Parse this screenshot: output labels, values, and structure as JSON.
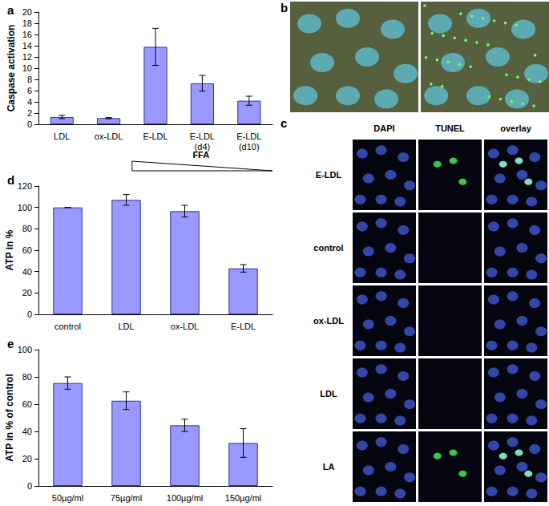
{
  "chart_data": [
    {
      "type": "bar",
      "title": "a",
      "categories": [
        "LDL",
        "ox-LDL",
        "E-LDL",
        "E-LDL\n(d4)",
        "E-LDL\n(d10)"
      ],
      "values": [
        1.3,
        1.1,
        13.8,
        7.3,
        4.2
      ],
      "errors": [
        0.3,
        0.1,
        3.3,
        1.4,
        0.8
      ],
      "color": "#9999ff",
      "ylabel": "Caspase activation",
      "ylim": [
        0,
        20
      ],
      "yticks": [
        0,
        2,
        4,
        6,
        8,
        10,
        12,
        14,
        16,
        18,
        20
      ],
      "grid": false,
      "annotations": [
        "FFA"
      ]
    },
    {
      "type": "bar",
      "title": "d",
      "categories": [
        "control",
        "LDL",
        "ox-LDL",
        "E-LDL"
      ],
      "values": [
        100,
        107,
        96.5,
        43
      ],
      "errors": [
        0,
        5,
        5.5,
        3.5
      ],
      "color": "#9999ff",
      "ylabel": "ATP in %",
      "ylim": [
        0,
        120
      ],
      "yticks": [
        0,
        20,
        40,
        60,
        80,
        100,
        120
      ],
      "grid": false
    },
    {
      "type": "bar",
      "title": "e",
      "categories": [
        "50µg/ml",
        "75µg/ml",
        "100µg/ml",
        "150µg/ml"
      ],
      "values": [
        75.5,
        62.5,
        44.5,
        31.5
      ],
      "errors": [
        4.5,
        6.5,
        4.5,
        10.5
      ],
      "color": "#9999ff",
      "ylabel": "ATP in % of control",
      "ylim": [
        0,
        100
      ],
      "yticks": [
        0,
        20,
        40,
        60,
        80,
        100
      ],
      "grid": false
    }
  ],
  "image_panels": [
    {
      "title": "b",
      "images": [
        {
          "green_dots": false
        },
        {
          "green_dots": true
        }
      ]
    },
    {
      "title": "c",
      "columns": [
        "DAPI",
        "TUNEL",
        "overlay"
      ],
      "rows": [
        {
          "label": "E-LDL",
          "tunel": true
        },
        {
          "label": "control",
          "tunel": false
        },
        {
          "label": "ox-LDL",
          "tunel": false
        },
        {
          "label": "LDL",
          "tunel": false
        },
        {
          "label": "LA",
          "tunel": true
        }
      ]
    }
  ]
}
